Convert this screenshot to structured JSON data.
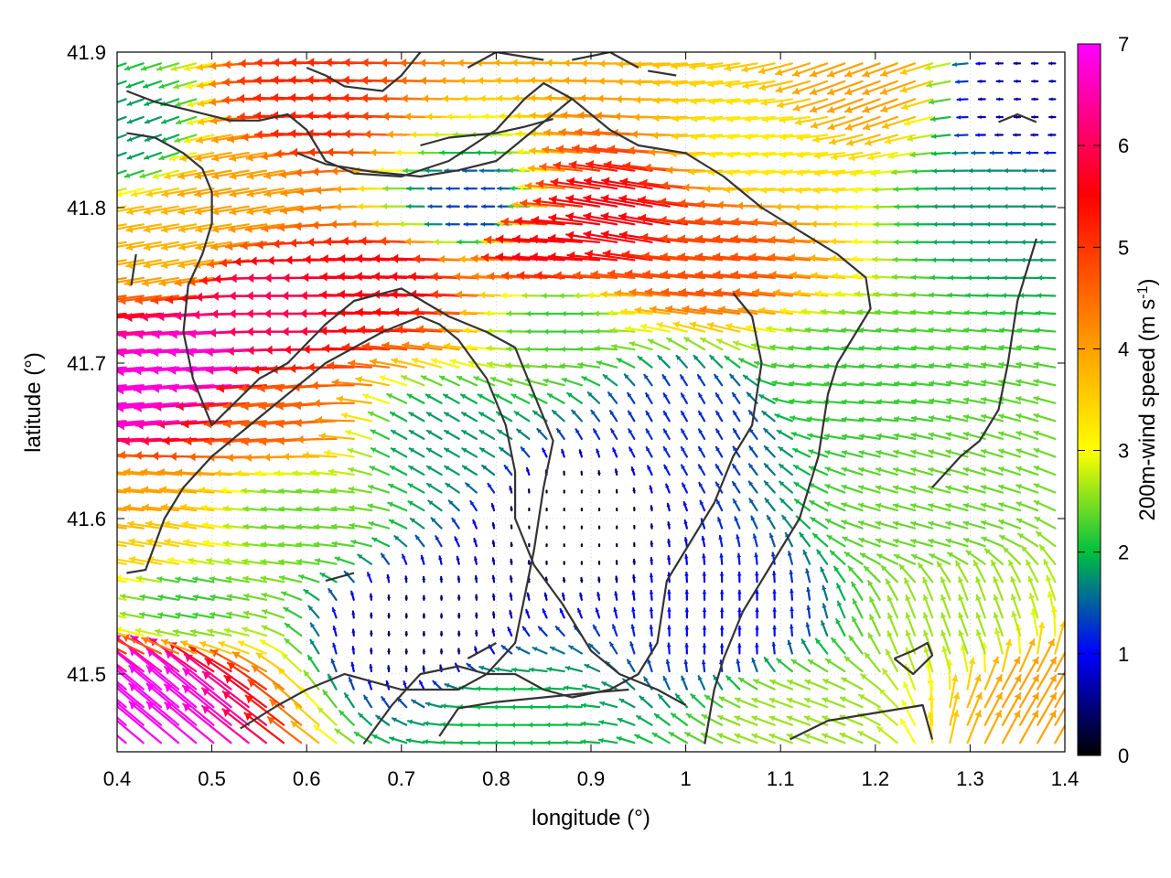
{
  "chart_data": {
    "type": "vector-field",
    "xlabel": "longitude (°)",
    "ylabel": "latitude (°)",
    "xlim": [
      0.4,
      1.4
    ],
    "ylim": [
      41.45,
      41.9
    ],
    "x_ticks": [
      "0.4",
      "0.5",
      "0.6",
      "0.7",
      "0.8",
      "0.9",
      "1",
      "1.1",
      "1.2",
      "1.3",
      "1.4"
    ],
    "y_ticks": [
      "41.5",
      "41.6",
      "41.7",
      "41.8",
      "41.9"
    ],
    "x_tick_values": [
      0.4,
      0.5,
      0.6,
      0.7,
      0.8,
      0.9,
      1.0,
      1.1,
      1.2,
      1.3,
      1.4
    ],
    "y_tick_values": [
      41.5,
      41.6,
      41.7,
      41.8,
      41.9
    ],
    "colorbar": {
      "label_prefix": "200m-wind speed (m s",
      "label_exp": "-1",
      "label_suffix": ")",
      "range": [
        0,
        7
      ],
      "ticks": [
        "0",
        "1",
        "2",
        "3",
        "4",
        "5",
        "6",
        "7"
      ],
      "tick_values": [
        0,
        1,
        2,
        3,
        4,
        5,
        6,
        7
      ],
      "colors": [
        "#000000",
        "#0000ff",
        "#00c040",
        "#ffff00",
        "#ffa000",
        "#ff0000",
        "#ff00ff"
      ],
      "stops": [
        0,
        1,
        2,
        3,
        4,
        5.5,
        7
      ]
    },
    "grid": "dotted",
    "vector_spacing": [
      0.0185,
      0.0115
    ],
    "wind_features": [
      {
        "lon": 0.45,
        "lat": 41.68,
        "speed": 6.8,
        "dir_deg": 185
      },
      {
        "lon": 0.52,
        "lat": 41.7,
        "speed": 6.8,
        "dir_deg": 183
      },
      {
        "lon": 0.6,
        "lat": 41.735,
        "speed": 6.0,
        "dir_deg": 180
      },
      {
        "lon": 0.72,
        "lat": 41.755,
        "speed": 5.6,
        "dir_deg": 178
      },
      {
        "lon": 0.88,
        "lat": 41.77,
        "speed": 5.6,
        "dir_deg": 176
      },
      {
        "lon": 0.95,
        "lat": 41.79,
        "speed": 5.6,
        "dir_deg": 170
      },
      {
        "lon": 1.05,
        "lat": 41.77,
        "speed": 4.8,
        "dir_deg": 175
      },
      {
        "lon": 0.63,
        "lat": 41.86,
        "speed": 5.2,
        "dir_deg": 178
      },
      {
        "lon": 0.55,
        "lat": 41.82,
        "speed": 4.0,
        "dir_deg": 190
      },
      {
        "lon": 1.2,
        "lat": 41.88,
        "speed": 4.0,
        "dir_deg": 200
      },
      {
        "lon": 0.45,
        "lat": 41.475,
        "speed": 7.0,
        "dir_deg": 140
      },
      {
        "lon": 1.37,
        "lat": 41.48,
        "speed": 4.0,
        "dir_deg": 60
      },
      {
        "lon": 0.88,
        "lat": 41.6,
        "speed": 0.15,
        "dir_deg": 90
      },
      {
        "lon": 0.72,
        "lat": 41.53,
        "speed": 0.4,
        "dir_deg": 90
      },
      {
        "lon": 1.05,
        "lat": 41.53,
        "speed": 1.0,
        "dir_deg": 90
      },
      {
        "lon": 1.0,
        "lat": 41.66,
        "speed": 1.2,
        "dir_deg": 120
      },
      {
        "lon": 0.75,
        "lat": 41.65,
        "speed": 1.8,
        "dir_deg": 150
      },
      {
        "lon": 0.88,
        "lat": 41.73,
        "speed": 2.2,
        "dir_deg": 180
      },
      {
        "lon": 0.78,
        "lat": 41.8,
        "speed": 1.3,
        "dir_deg": 180
      },
      {
        "lon": 1.18,
        "lat": 41.69,
        "speed": 2.2,
        "dir_deg": 175
      },
      {
        "lon": 1.27,
        "lat": 41.6,
        "speed": 2.4,
        "dir_deg": 165
      },
      {
        "lon": 1.3,
        "lat": 41.53,
        "speed": 2.6,
        "dir_deg": 110
      },
      {
        "lon": 1.34,
        "lat": 41.8,
        "speed": 1.8,
        "dir_deg": 180
      },
      {
        "lon": 1.36,
        "lat": 41.87,
        "speed": 0.6,
        "dir_deg": 180
      },
      {
        "lon": 0.42,
        "lat": 41.85,
        "speed": 1.8,
        "dir_deg": 200
      },
      {
        "lon": 0.47,
        "lat": 41.78,
        "speed": 3.8,
        "dir_deg": 190
      },
      {
        "lon": 0.43,
        "lat": 41.61,
        "speed": 4.0,
        "dir_deg": 175
      },
      {
        "lon": 0.48,
        "lat": 41.55,
        "speed": 2.2,
        "dir_deg": 170
      },
      {
        "lon": 0.6,
        "lat": 41.6,
        "speed": 2.4,
        "dir_deg": 175
      },
      {
        "lon": 0.82,
        "lat": 41.47,
        "speed": 2.0,
        "dir_deg": 180
      },
      {
        "lon": 1.12,
        "lat": 41.47,
        "speed": 2.6,
        "dir_deg": 160
      },
      {
        "lon": 1.1,
        "lat": 41.84,
        "speed": 3.2,
        "dir_deg": 185
      },
      {
        "lon": 0.58,
        "lat": 41.67,
        "speed": 4.6,
        "dir_deg": 185
      },
      {
        "lon": 0.45,
        "lat": 41.58,
        "speed": 3.5,
        "dir_deg": 170
      }
    ],
    "contours": [
      [
        [
          0.41,
          41.875
        ],
        [
          0.44,
          41.868
        ],
        [
          0.48,
          41.862
        ],
        [
          0.52,
          41.856
        ],
        [
          0.55,
          41.856
        ],
        [
          0.58,
          41.86
        ],
        [
          0.6,
          41.85
        ],
        [
          0.62,
          41.83
        ],
        [
          0.65,
          41.822
        ],
        [
          0.7,
          41.82
        ],
        [
          0.75,
          41.83
        ],
        [
          0.8,
          41.85
        ],
        [
          0.83,
          41.87
        ],
        [
          0.85,
          41.88
        ],
        [
          0.88,
          41.87
        ],
        [
          0.92,
          41.85
        ],
        [
          0.95,
          41.84
        ],
        [
          1.0,
          41.835
        ],
        [
          1.04,
          41.82
        ],
        [
          1.08,
          41.8
        ],
        [
          1.12,
          41.785
        ],
        [
          1.16,
          41.77
        ],
        [
          1.19,
          41.755
        ],
        [
          1.195,
          41.735
        ],
        [
          1.18,
          41.72
        ],
        [
          1.16,
          41.7
        ],
        [
          1.15,
          41.68
        ],
        [
          1.14,
          41.64
        ],
        [
          1.12,
          41.6
        ],
        [
          1.09,
          41.57
        ],
        [
          1.06,
          41.54
        ],
        [
          1.04,
          41.51
        ],
        [
          1.03,
          41.49
        ],
        [
          1.02,
          41.455
        ]
      ],
      [
        [
          0.41,
          41.848
        ],
        [
          0.44,
          41.845
        ],
        [
          0.47,
          41.835
        ],
        [
          0.49,
          41.825
        ],
        [
          0.5,
          41.81
        ],
        [
          0.5,
          41.79
        ],
        [
          0.49,
          41.77
        ],
        [
          0.475,
          41.75
        ],
        [
          0.47,
          41.72
        ],
        [
          0.48,
          41.69
        ],
        [
          0.5,
          41.66
        ],
        [
          0.55,
          41.69
        ],
        [
          0.58,
          41.7
        ],
        [
          0.62,
          41.725
        ],
        [
          0.65,
          41.74
        ],
        [
          0.7,
          41.748
        ],
        [
          0.75,
          41.73
        ],
        [
          0.79,
          41.72
        ],
        [
          0.82,
          41.71
        ],
        [
          0.84,
          41.68
        ],
        [
          0.86,
          41.65
        ],
        [
          0.85,
          41.62
        ],
        [
          0.84,
          41.58
        ],
        [
          0.83,
          41.55
        ],
        [
          0.82,
          41.52
        ],
        [
          0.79,
          41.5
        ],
        [
          0.76,
          41.49
        ],
        [
          0.7,
          41.49
        ],
        [
          0.64,
          41.5
        ],
        [
          0.6,
          41.49
        ],
        [
          0.57,
          41.48
        ],
        [
          0.53,
          41.465
        ]
      ],
      [
        [
          0.41,
          41.565
        ],
        [
          0.43,
          41.567
        ],
        [
          0.45,
          41.6
        ],
        [
          0.47,
          41.62
        ],
        [
          0.5,
          41.64
        ],
        [
          0.54,
          41.66
        ],
        [
          0.58,
          41.68
        ],
        [
          0.62,
          41.7
        ],
        [
          0.68,
          41.72
        ],
        [
          0.72,
          41.73
        ],
        [
          0.74,
          41.725
        ],
        [
          0.76,
          41.715
        ],
        [
          0.79,
          41.69
        ],
        [
          0.81,
          41.66
        ],
        [
          0.82,
          41.63
        ],
        [
          0.82,
          41.6
        ],
        [
          0.84,
          41.57
        ],
        [
          0.87,
          41.545
        ],
        [
          0.9,
          41.515
        ],
        [
          0.93,
          41.5
        ],
        [
          0.97,
          41.49
        ],
        [
          1.0,
          41.48
        ]
      ],
      [
        [
          0.66,
          41.455
        ],
        [
          0.69,
          41.48
        ],
        [
          0.72,
          41.5
        ],
        [
          0.76,
          41.505
        ],
        [
          0.79,
          41.5
        ],
        [
          0.82,
          41.5
        ],
        [
          0.85,
          41.49
        ],
        [
          0.88,
          41.485
        ],
        [
          0.92,
          41.49
        ],
        [
          0.95,
          41.5
        ],
        [
          0.97,
          41.52
        ],
        [
          0.98,
          41.56
        ],
        [
          1.0,
          41.58
        ],
        [
          1.03,
          41.61
        ],
        [
          1.05,
          41.64
        ],
        [
          1.07,
          41.66
        ],
        [
          1.08,
          41.7
        ],
        [
          1.07,
          41.73
        ],
        [
          1.05,
          41.745
        ]
      ],
      [
        [
          0.59,
          41.835
        ],
        [
          0.62,
          41.828
        ],
        [
          0.67,
          41.823
        ],
        [
          0.72,
          41.82
        ],
        [
          0.76,
          41.824
        ],
        [
          0.8,
          41.83
        ],
        [
          0.82,
          41.84
        ],
        [
          0.84,
          41.85
        ],
        [
          0.86,
          41.86
        ],
        [
          0.88,
          41.87
        ]
      ],
      [
        [
          0.72,
          41.84
        ],
        [
          0.75,
          41.845
        ],
        [
          0.8,
          41.848
        ],
        [
          0.83,
          41.852
        ],
        [
          0.86,
          41.857
        ]
      ],
      [
        [
          0.6,
          41.89
        ],
        [
          0.62,
          41.885
        ],
        [
          0.64,
          41.878
        ],
        [
          0.68,
          41.875
        ],
        [
          0.7,
          41.885
        ],
        [
          0.72,
          41.9
        ]
      ],
      [
        [
          0.77,
          41.89
        ],
        [
          0.8,
          41.9
        ],
        [
          0.85,
          41.895
        ]
      ],
      [
        [
          0.88,
          41.895
        ],
        [
          0.92,
          41.9
        ],
        [
          0.95,
          41.89
        ]
      ],
      [
        [
          0.96,
          41.888
        ],
        [
          0.99,
          41.885
        ]
      ],
      [
        [
          1.22,
          41.51
        ],
        [
          1.24,
          41.5
        ],
        [
          1.26,
          41.512
        ],
        [
          1.255,
          41.52
        ],
        [
          1.24,
          41.515
        ],
        [
          1.22,
          41.51
        ]
      ],
      [
        [
          1.11,
          41.458
        ],
        [
          1.15,
          41.47
        ],
        [
          1.2,
          41.475
        ],
        [
          1.25,
          41.48
        ],
        [
          1.26,
          41.458
        ]
      ],
      [
        [
          0.74,
          41.46
        ],
        [
          0.76,
          41.478
        ],
        [
          0.8,
          41.482
        ],
        [
          0.85,
          41.485
        ],
        [
          0.9,
          41.488
        ],
        [
          0.94,
          41.49
        ]
      ],
      [
        [
          1.26,
          41.62
        ],
        [
          1.29,
          41.64
        ],
        [
          1.31,
          41.65
        ],
        [
          1.33,
          41.67
        ],
        [
          1.34,
          41.7
        ],
        [
          1.35,
          41.74
        ],
        [
          1.37,
          41.78
        ]
      ],
      [
        [
          1.33,
          41.855
        ],
        [
          1.35,
          41.86
        ],
        [
          1.37,
          41.855
        ]
      ],
      [
        [
          0.415,
          41.75
        ],
        [
          0.42,
          41.77
        ]
      ],
      [
        [
          0.77,
          41.51
        ],
        [
          0.8,
          41.52
        ]
      ],
      [
        [
          0.62,
          41.56
        ],
        [
          0.65,
          41.565
        ]
      ]
    ]
  }
}
